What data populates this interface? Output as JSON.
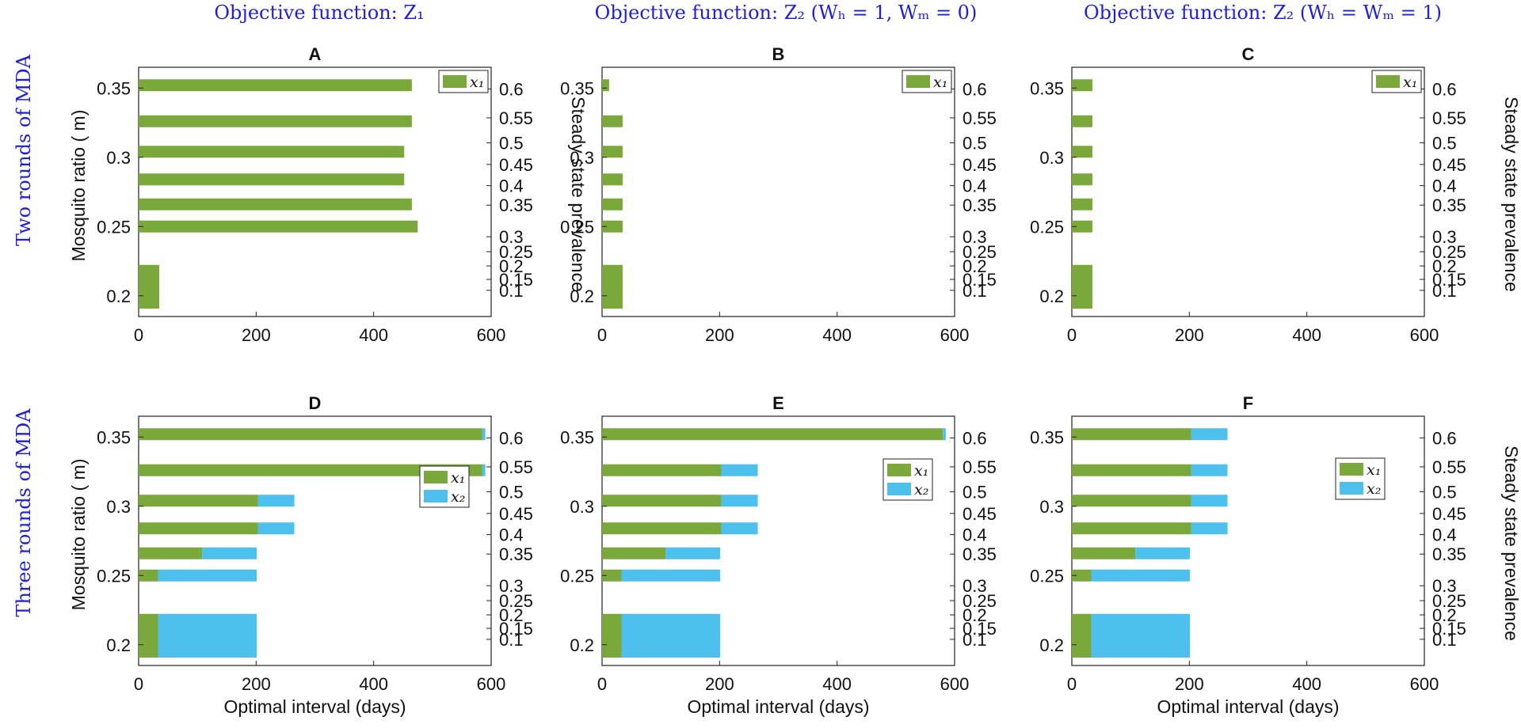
{
  "colors": {
    "x1": "#7aa83a",
    "x2": "#4ec0ee",
    "heading": "#1f1fd9",
    "axis": "#222222"
  },
  "headings": {
    "col1": "Objective function:  Z₁",
    "col2": "Objective function:  Z₂ (Wₕ = 1,  Wₘ = 0)",
    "col3": "Objective function:  Z₂ (Wₕ = Wₘ = 1)",
    "row1": "Two rounds of MDA",
    "row2": "Three rounds of MDA"
  },
  "chart_data": [
    {
      "type": "bar",
      "orientation": "horizontal",
      "stacked": true,
      "panel": "A",
      "title": "A",
      "ylabel": "Mosquito ratio ( m)",
      "xlabel": "",
      "y2label": "Steady state prevalence",
      "xlim": [
        0,
        600
      ],
      "xticks": [
        "0",
        "200",
        "400",
        "600"
      ],
      "ylim": [
        0.185,
        0.365
      ],
      "yticks": [
        "0.2",
        "0.25",
        "0.3",
        "0.35"
      ],
      "right_ticks": [
        "0.1",
        "0.15",
        "0.2",
        "0.25",
        "0.3",
        "0.35",
        "0.4",
        "0.45",
        "0.5",
        "0.55",
        "0.6"
      ],
      "legend": [
        "x₁"
      ],
      "legend_position": "top-right",
      "categories": [
        0.195,
        0.2,
        0.206,
        0.212,
        0.218,
        0.25,
        0.266,
        0.284,
        0.304,
        0.326,
        0.352
      ],
      "series": [
        {
          "name": "x₁",
          "values": [
            35,
            35,
            35,
            35,
            35,
            475,
            465,
            452,
            452,
            465,
            465
          ]
        }
      ]
    },
    {
      "type": "bar",
      "orientation": "horizontal",
      "stacked": true,
      "panel": "B",
      "title": "B",
      "ylabel": "",
      "xlabel": "",
      "y2label": "",
      "xlim": [
        0,
        600
      ],
      "xticks": [
        "0",
        "200",
        "400",
        "600"
      ],
      "ylim": [
        0.185,
        0.365
      ],
      "yticks": [
        "0.2",
        "0.25",
        "0.3",
        "0.35"
      ],
      "right_ticks": [
        "0.1",
        "0.15",
        "0.2",
        "0.25",
        "0.3",
        "0.35",
        "0.4",
        "0.45",
        "0.5",
        "0.55",
        "0.6"
      ],
      "legend": [
        "x₁"
      ],
      "legend_position": "top-right",
      "categories": [
        0.195,
        0.2,
        0.206,
        0.212,
        0.218,
        0.25,
        0.266,
        0.284,
        0.304,
        0.326,
        0.352
      ],
      "series": [
        {
          "name": "x₁",
          "values": [
            35,
            35,
            35,
            35,
            35,
            35,
            35,
            35,
            35,
            35,
            12
          ]
        }
      ]
    },
    {
      "type": "bar",
      "orientation": "horizontal",
      "stacked": true,
      "panel": "C",
      "title": "C",
      "ylabel": "",
      "xlabel": "",
      "y2label": "Steady state prevalence",
      "xlim": [
        0,
        600
      ],
      "xticks": [
        "0",
        "200",
        "400",
        "600"
      ],
      "ylim": [
        0.185,
        0.365
      ],
      "yticks": [
        "0.2",
        "0.25",
        "0.3",
        "0.35"
      ],
      "right_ticks": [
        "0.1",
        "0.15",
        "0.2",
        "0.25",
        "0.3",
        "0.35",
        "0.4",
        "0.45",
        "0.5",
        "0.55",
        "0.6"
      ],
      "legend": [
        "x₁"
      ],
      "legend_position": "top-right",
      "categories": [
        0.195,
        0.2,
        0.206,
        0.212,
        0.218,
        0.25,
        0.266,
        0.284,
        0.304,
        0.326,
        0.352
      ],
      "series": [
        {
          "name": "x₁",
          "values": [
            35,
            35,
            35,
            35,
            35,
            35,
            35,
            35,
            35,
            35,
            35
          ]
        }
      ]
    },
    {
      "type": "bar",
      "orientation": "horizontal",
      "stacked": true,
      "panel": "D",
      "title": "D",
      "ylabel": "Mosquito ratio ( m)",
      "xlabel": "Optimal interval (days)",
      "y2label": "",
      "xlim": [
        0,
        600
      ],
      "xticks": [
        "0",
        "200",
        "400",
        "600"
      ],
      "ylim": [
        0.185,
        0.365
      ],
      "yticks": [
        "0.2",
        "0.25",
        "0.3",
        "0.35"
      ],
      "right_ticks": [
        "0.1",
        "0.15",
        "0.2",
        "0.25",
        "0.3",
        "0.35",
        "0.4",
        "0.45",
        "0.5",
        "0.55",
        "0.6"
      ],
      "legend": [
        "x₁",
        "x₂"
      ],
      "legend_position": "center-right",
      "categories": [
        0.195,
        0.2,
        0.206,
        0.212,
        0.218,
        0.25,
        0.266,
        0.284,
        0.304,
        0.326,
        0.352
      ],
      "series": [
        {
          "name": "x₁",
          "values": [
            33,
            33,
            33,
            33,
            33,
            33,
            108,
            203,
            203,
            585,
            585
          ]
        },
        {
          "name": "x₂",
          "values": [
            168,
            168,
            168,
            168,
            168,
            168,
            93,
            62,
            62,
            5,
            5
          ]
        }
      ]
    },
    {
      "type": "bar",
      "orientation": "horizontal",
      "stacked": true,
      "panel": "E",
      "title": "E",
      "ylabel": "",
      "xlabel": "Optimal interval (days)",
      "y2label": "",
      "xlim": [
        0,
        600
      ],
      "xticks": [
        "0",
        "200",
        "400",
        "600"
      ],
      "ylim": [
        0.185,
        0.365
      ],
      "yticks": [
        "0.2",
        "0.25",
        "0.3",
        "0.35"
      ],
      "right_ticks": [
        "0.1",
        "0.15",
        "0.2",
        "0.25",
        "0.3",
        "0.35",
        "0.4",
        "0.45",
        "0.5",
        "0.55",
        "0.6"
      ],
      "legend": [
        "x₁",
        "x₂"
      ],
      "legend_position": "center-right",
      "categories": [
        0.195,
        0.2,
        0.206,
        0.212,
        0.218,
        0.25,
        0.266,
        0.284,
        0.304,
        0.326,
        0.352
      ],
      "series": [
        {
          "name": "x₁",
          "values": [
            33,
            33,
            33,
            33,
            33,
            33,
            108,
            203,
            203,
            203,
            580
          ]
        },
        {
          "name": "x₂",
          "values": [
            168,
            168,
            168,
            168,
            168,
            168,
            93,
            62,
            62,
            62,
            5
          ]
        }
      ]
    },
    {
      "type": "bar",
      "orientation": "horizontal",
      "stacked": true,
      "panel": "F",
      "title": "F",
      "ylabel": "",
      "xlabel": "Optimal interval (days)",
      "y2label": "Steady state prevalence",
      "xlim": [
        0,
        600
      ],
      "xticks": [
        "0",
        "200",
        "400",
        "600"
      ],
      "ylim": [
        0.185,
        0.365
      ],
      "yticks": [
        "0.2",
        "0.25",
        "0.3",
        "0.35"
      ],
      "right_ticks": [
        "0.1",
        "0.15",
        "0.2",
        "0.25",
        "0.3",
        "0.35",
        "0.4",
        "0.45",
        "0.5",
        "0.55",
        "0.6"
      ],
      "legend": [
        "x₁",
        "x₂"
      ],
      "legend_position": "center-right",
      "categories": [
        0.195,
        0.2,
        0.206,
        0.212,
        0.218,
        0.25,
        0.266,
        0.284,
        0.304,
        0.326,
        0.352
      ],
      "series": [
        {
          "name": "x₁",
          "values": [
            33,
            33,
            33,
            33,
            33,
            33,
            108,
            203,
            203,
            203,
            203
          ]
        },
        {
          "name": "x₂",
          "values": [
            168,
            168,
            168,
            168,
            168,
            168,
            93,
            62,
            62,
            62,
            62
          ]
        }
      ]
    }
  ]
}
